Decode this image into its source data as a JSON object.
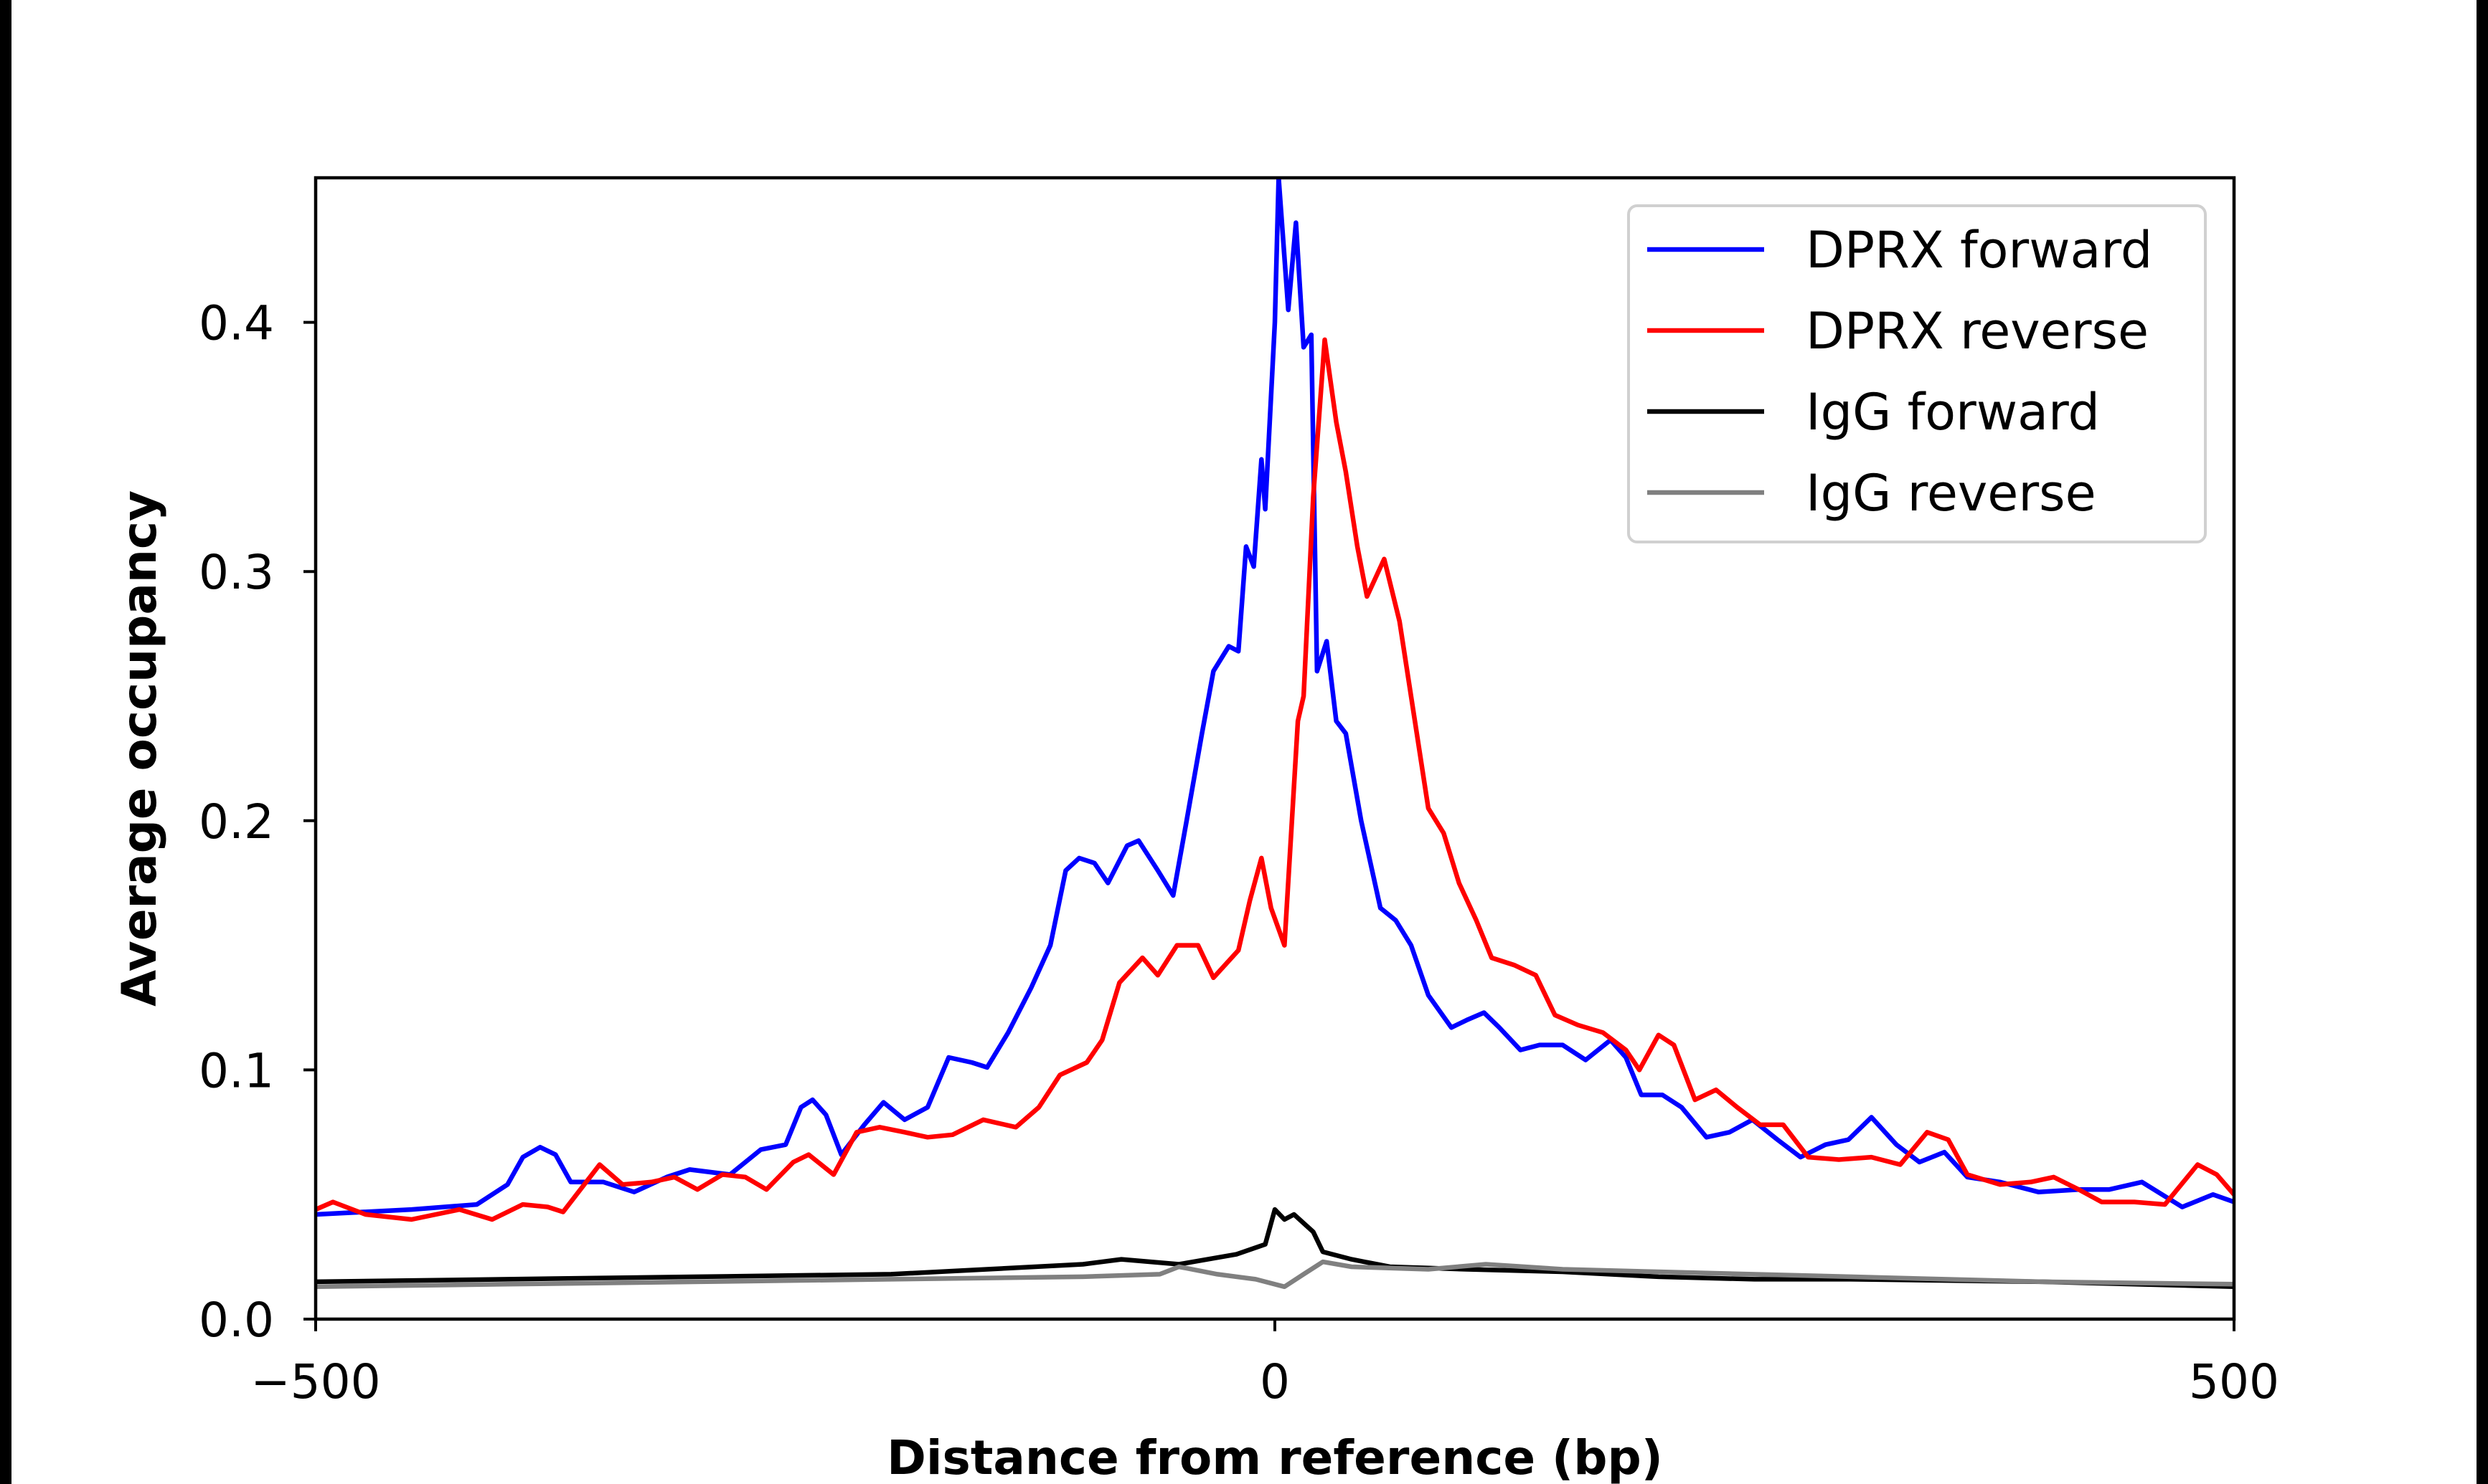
{
  "chart_data": {
    "type": "line",
    "title": "",
    "xlabel": "Distance from reference (bp)",
    "ylabel": "Average occupancy",
    "xlim": [
      -500,
      500
    ],
    "ylim": [
      0,
      0.458
    ],
    "xticks": [
      -500,
      0,
      500
    ],
    "xtick_labels": [
      "−500",
      "0",
      "500"
    ],
    "yticks": [
      0.0,
      0.1,
      0.2,
      0.3,
      0.4
    ],
    "ytick_labels": [
      "0.0",
      "0.1",
      "0.2",
      "0.3",
      "0.4"
    ],
    "grid": false,
    "legend_position": "top-right",
    "series": [
      {
        "name": "DPRX forward",
        "color": "#0000ff",
        "x": [
          -500,
          -450,
          -416,
          -400,
          -392,
          -383,
          -375,
          -367,
          -350,
          -334,
          -317,
          -305,
          -284,
          -268,
          -255,
          -247,
          -241,
          -234,
          -226,
          -214,
          -204,
          -193,
          -181,
          -170,
          -158,
          -150,
          -139,
          -127,
          -117,
          -109,
          -102,
          -94,
          -87,
          -77,
          -71,
          -61,
          -53,
          -46,
          -38,
          -32,
          -24,
          -19,
          -15,
          -11,
          -7,
          -5,
          0,
          2,
          7,
          11,
          15,
          19,
          22,
          27,
          32,
          37,
          45,
          55,
          63,
          71,
          80,
          92,
          100,
          109,
          117,
          128,
          138,
          150,
          162,
          175,
          183,
          191,
          202,
          212,
          225,
          237,
          249,
          262,
          274,
          287,
          299,
          311,
          324,
          336,
          349,
          361,
          378,
          398,
          419,
          435,
          452,
          473,
          489,
          500
        ],
        "y": [
          0.042,
          0.044,
          0.046,
          0.054,
          0.065,
          0.069,
          0.066,
          0.055,
          0.055,
          0.051,
          0.057,
          0.06,
          0.058,
          0.068,
          0.07,
          0.085,
          0.088,
          0.082,
          0.066,
          0.078,
          0.087,
          0.08,
          0.085,
          0.105,
          0.103,
          0.101,
          0.115,
          0.133,
          0.15,
          0.18,
          0.185,
          0.183,
          0.175,
          0.19,
          0.192,
          0.18,
          0.17,
          0.2,
          0.235,
          0.26,
          0.27,
          0.268,
          0.31,
          0.302,
          0.345,
          0.325,
          0.4,
          0.458,
          0.405,
          0.44,
          0.39,
          0.395,
          0.26,
          0.272,
          0.24,
          0.235,
          0.2,
          0.165,
          0.16,
          0.15,
          0.13,
          0.117,
          0.12,
          0.123,
          0.117,
          0.108,
          0.11,
          0.11,
          0.104,
          0.112,
          0.105,
          0.09,
          0.09,
          0.085,
          0.073,
          0.075,
          0.08,
          0.072,
          0.065,
          0.07,
          0.072,
          0.081,
          0.07,
          0.063,
          0.067,
          0.057,
          0.055,
          0.051,
          0.052,
          0.052,
          0.055,
          0.045,
          0.05,
          0.047
        ]
      },
      {
        "name": "DPRX reverse",
        "color": "#ff0000",
        "x": [
          -500,
          -491,
          -474,
          -450,
          -425,
          -408,
          -392,
          -379,
          -371,
          -352,
          -340,
          -325,
          -313,
          -301,
          -288,
          -276,
          -265,
          -251,
          -243,
          -230,
          -218,
          -206,
          -193,
          -181,
          -168,
          -152,
          -135,
          -123,
          -112,
          -98,
          -90,
          -81,
          -69,
          -61,
          -51,
          -40,
          -32,
          -19,
          -13,
          -7,
          -2,
          5,
          12,
          15,
          20,
          26,
          32,
          37,
          43,
          48,
          57,
          65,
          73,
          80,
          88,
          96,
          105,
          113,
          125,
          136,
          146,
          158,
          171,
          183,
          190,
          200,
          208,
          219,
          230,
          241,
          253,
          265,
          278,
          294,
          311,
          326,
          340,
          351,
          361,
          378,
          394,
          406,
          419,
          431,
          448,
          464,
          481,
          491,
          500
        ],
        "y": [
          0.044,
          0.047,
          0.042,
          0.04,
          0.044,
          0.04,
          0.046,
          0.045,
          0.043,
          0.062,
          0.054,
          0.055,
          0.057,
          0.052,
          0.058,
          0.057,
          0.052,
          0.063,
          0.066,
          0.058,
          0.075,
          0.077,
          0.075,
          0.073,
          0.074,
          0.08,
          0.077,
          0.085,
          0.098,
          0.103,
          0.112,
          0.135,
          0.145,
          0.138,
          0.15,
          0.15,
          0.137,
          0.148,
          0.168,
          0.185,
          0.165,
          0.15,
          0.24,
          0.25,
          0.33,
          0.393,
          0.36,
          0.34,
          0.31,
          0.29,
          0.305,
          0.28,
          0.24,
          0.205,
          0.195,
          0.175,
          0.16,
          0.145,
          0.142,
          0.138,
          0.122,
          0.118,
          0.115,
          0.108,
          0.1,
          0.114,
          0.11,
          0.088,
          0.092,
          0.085,
          0.078,
          0.078,
          0.065,
          0.064,
          0.065,
          0.062,
          0.075,
          0.072,
          0.058,
          0.054,
          0.055,
          0.057,
          0.052,
          0.047,
          0.047,
          0.046,
          0.062,
          0.058,
          0.05
        ]
      },
      {
        "name": "IgG forward",
        "color": "#000000",
        "x": [
          -500,
          -400,
          -300,
          -200,
          -150,
          -100,
          -80,
          -50,
          -20,
          -5,
          0,
          5,
          10,
          20,
          25,
          40,
          60,
          100,
          150,
          200,
          250,
          300,
          400,
          500
        ],
        "y": [
          0.015,
          0.016,
          0.017,
          0.018,
          0.02,
          0.022,
          0.024,
          0.022,
          0.026,
          0.03,
          0.044,
          0.04,
          0.042,
          0.035,
          0.027,
          0.024,
          0.021,
          0.02,
          0.019,
          0.017,
          0.016,
          0.016,
          0.015,
          0.013
        ]
      },
      {
        "name": "IgG reverse",
        "color": "#808080",
        "x": [
          -500,
          -400,
          -300,
          -200,
          -100,
          -60,
          -50,
          -30,
          -10,
          5,
          15,
          25,
          40,
          80,
          110,
          150,
          200,
          300,
          400,
          500
        ],
        "y": [
          0.013,
          0.014,
          0.015,
          0.016,
          0.017,
          0.018,
          0.021,
          0.018,
          0.016,
          0.013,
          0.018,
          0.023,
          0.021,
          0.02,
          0.022,
          0.02,
          0.019,
          0.017,
          0.015,
          0.014
        ]
      }
    ]
  }
}
